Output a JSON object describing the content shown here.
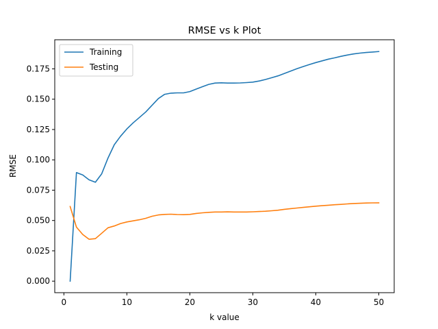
{
  "chart_data": {
    "type": "line",
    "title": "RMSE vs k Plot",
    "xlabel": "k value",
    "ylabel": "RMSE",
    "xlim": [
      -1.45,
      52.45
    ],
    "ylim": [
      -0.0095,
      0.199
    ],
    "xticks": [
      0,
      10,
      20,
      30,
      40,
      50
    ],
    "xtick_labels": [
      "0",
      "10",
      "20",
      "30",
      "40",
      "50"
    ],
    "yticks": [
      0.0,
      0.025,
      0.05,
      0.075,
      0.1,
      0.125,
      0.15,
      0.175
    ],
    "ytick_labels": [
      "0.000",
      "0.025",
      "0.050",
      "0.075",
      "0.100",
      "0.125",
      "0.150",
      "0.175"
    ],
    "grid": false,
    "legend_position": "top-left",
    "x": [
      1,
      2,
      3,
      4,
      5,
      6,
      7,
      8,
      9,
      10,
      11,
      12,
      13,
      14,
      15,
      16,
      17,
      18,
      19,
      20,
      21,
      22,
      23,
      24,
      25,
      26,
      27,
      28,
      29,
      30,
      31,
      32,
      33,
      34,
      35,
      36,
      37,
      38,
      39,
      40,
      41,
      42,
      43,
      44,
      45,
      46,
      47,
      48,
      49,
      50
    ],
    "series": [
      {
        "name": "Training",
        "color": "#1f77b4",
        "values": [
          0.0,
          0.0895,
          0.0875,
          0.0835,
          0.0815,
          0.0885,
          0.1015,
          0.1125,
          0.1195,
          0.1255,
          0.1305,
          0.135,
          0.1395,
          0.145,
          0.1505,
          0.154,
          0.155,
          0.1552,
          0.1552,
          0.1563,
          0.1583,
          0.1603,
          0.1622,
          0.1633,
          0.1635,
          0.1633,
          0.1633,
          0.1634,
          0.1637,
          0.1641,
          0.165,
          0.1662,
          0.1677,
          0.1692,
          0.1712,
          0.1732,
          0.1751,
          0.1769,
          0.1786,
          0.1802,
          0.1816,
          0.183,
          0.1841,
          0.1853,
          0.1864,
          0.1873,
          0.188,
          0.1885,
          0.1889,
          0.1893
        ]
      },
      {
        "name": "Testing",
        "color": "#ff7f0e",
        "values": [
          0.0615,
          0.0445,
          0.0385,
          0.0345,
          0.035,
          0.0395,
          0.044,
          0.0455,
          0.0475,
          0.0488,
          0.0497,
          0.0506,
          0.0518,
          0.0535,
          0.0546,
          0.055,
          0.0552,
          0.0549,
          0.0548,
          0.055,
          0.0558,
          0.0563,
          0.0567,
          0.057,
          0.057,
          0.0571,
          0.057,
          0.057,
          0.057,
          0.0572,
          0.0574,
          0.0576,
          0.058,
          0.0585,
          0.0592,
          0.0598,
          0.0603,
          0.0608,
          0.0613,
          0.0618,
          0.0622,
          0.0626,
          0.063,
          0.0633,
          0.0637,
          0.064,
          0.0642,
          0.0644,
          0.0645,
          0.0646
        ]
      }
    ]
  }
}
